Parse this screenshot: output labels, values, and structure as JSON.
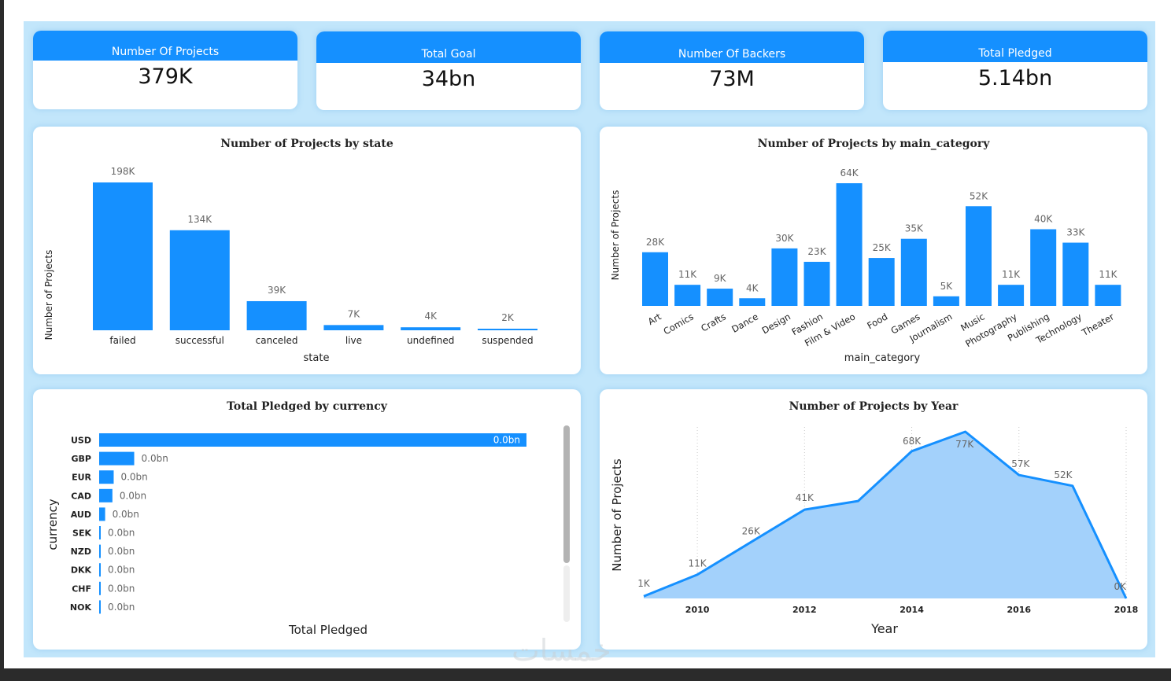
{
  "kpis": [
    {
      "label": "Number Of Projects",
      "value": "379K"
    },
    {
      "label": "Total Goal",
      "value": "34bn"
    },
    {
      "label": "Number Of Backers",
      "value": "73M"
    },
    {
      "label": "Total Pledged",
      "value": "5.14bn"
    }
  ],
  "colors": {
    "accent": "#1590ff",
    "area_fill": "#a3d1fb",
    "frame": "#c2e6fb"
  },
  "watermark": "خمسات",
  "chart_data": [
    {
      "type": "bar",
      "title": "Number of Projects by state",
      "xlabel": "state",
      "ylabel": "Number of Projects",
      "categories": [
        "failed",
        "successful",
        "canceled",
        "live",
        "undefined",
        "suspended"
      ],
      "values": [
        198,
        134,
        39,
        7,
        4,
        2
      ],
      "labels": [
        "198K",
        "134K",
        "39K",
        "7K",
        "4K",
        "2K"
      ],
      "unit": "K",
      "ylim": [
        0,
        198
      ]
    },
    {
      "type": "bar",
      "title": "Number of Projects by main_category",
      "xlabel": "main_category",
      "ylabel": "Number of Projects",
      "categories": [
        "Art",
        "Comics",
        "Crafts",
        "Dance",
        "Design",
        "Fashion",
        "Film & Video",
        "Food",
        "Games",
        "Journalism",
        "Music",
        "Photography",
        "Publishing",
        "Technology",
        "Theater"
      ],
      "values": [
        28,
        11,
        9,
        4,
        30,
        23,
        64,
        25,
        35,
        5,
        52,
        11,
        40,
        33,
        11
      ],
      "labels": [
        "28K",
        "11K",
        "9K",
        "4K",
        "30K",
        "23K",
        "64K",
        "25K",
        "35K",
        "5K",
        "52K",
        "11K",
        "40K",
        "33K",
        "11K"
      ],
      "unit": "K",
      "ylim": [
        0,
        64
      ]
    },
    {
      "type": "bar",
      "orientation": "horizontal",
      "title": "Total Pledged by currency",
      "xlabel": "Total Pledged",
      "ylabel": "currency",
      "categories": [
        "USD",
        "GBP",
        "EUR",
        "CAD",
        "AUD",
        "SEK",
        "NZD",
        "DKK",
        "CHF",
        "NOK"
      ],
      "values": [
        100,
        8.2,
        3.4,
        3.1,
        1.4,
        0.3,
        0.3,
        0.3,
        0.3,
        0.3
      ],
      "labels": [
        "0.0bn",
        "0.0bn",
        "0.0bn",
        "0.0bn",
        "0.0bn",
        "0.0bn",
        "0.0bn",
        "0.0bn",
        "0.0bn",
        "0.0bn"
      ],
      "unit": "relative %",
      "scrollbar_position": 0.7
    },
    {
      "type": "area",
      "title": "Number of Projects by Year",
      "xlabel": "Year",
      "ylabel": "Number of Projects",
      "x": [
        2009,
        2010,
        2011,
        2012,
        2013,
        2014,
        2015,
        2016,
        2017,
        2018
      ],
      "values": [
        1,
        11,
        26,
        41,
        45,
        68,
        77,
        57,
        52,
        0
      ],
      "labels": [
        "1K",
        "11K",
        "26K",
        "41K",
        "",
        "68K",
        "77K",
        "57K",
        "52K",
        "0K"
      ],
      "xticks": [
        "2010",
        "2012",
        "2014",
        "2016",
        "2018"
      ],
      "unit": "K",
      "ylim": [
        0,
        77
      ],
      "grid": "vertical-dotted"
    }
  ]
}
